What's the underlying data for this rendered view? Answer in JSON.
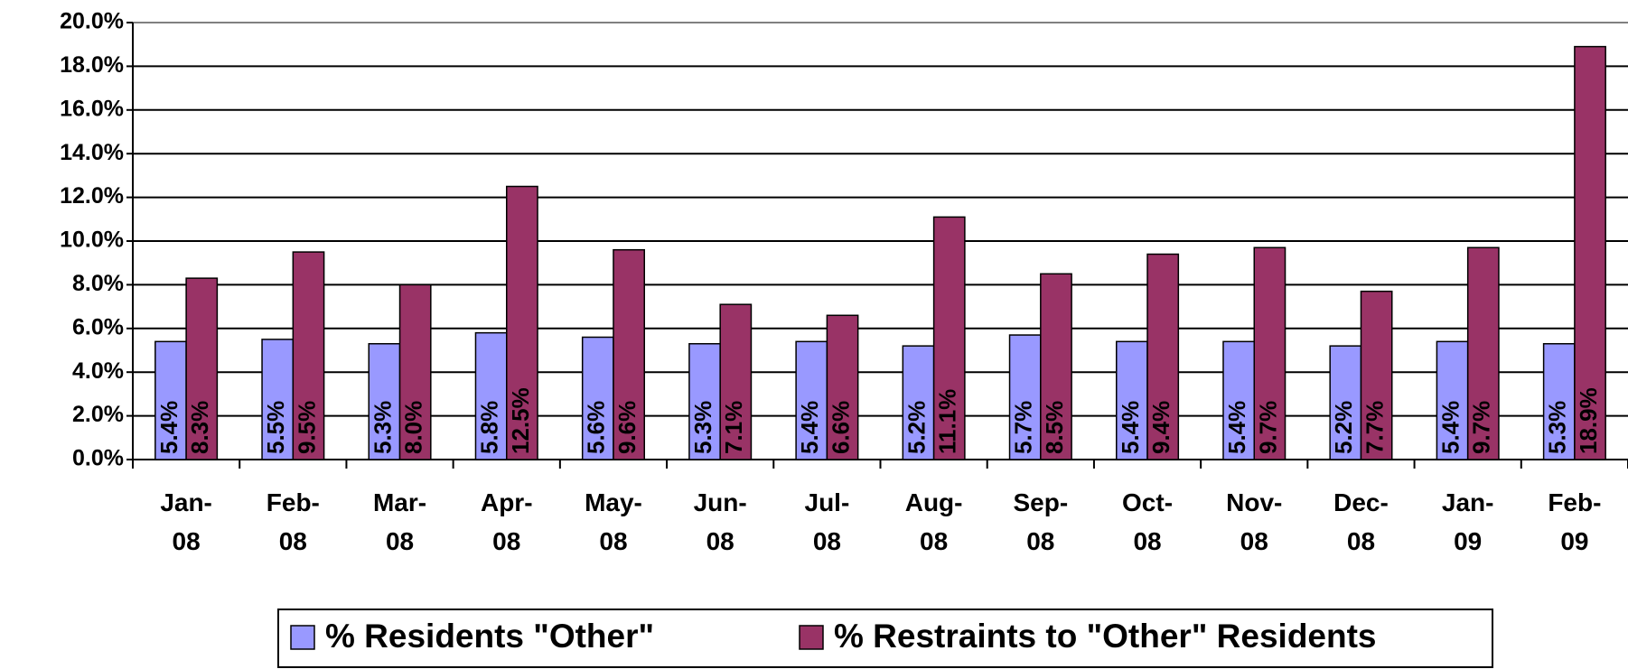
{
  "chart_data": {
    "type": "bar",
    "categories": [
      "Jan-08",
      "Feb-08",
      "Mar-08",
      "Apr-08",
      "May-08",
      "Jun-08",
      "Jul-08",
      "Aug-08",
      "Sep-08",
      "Oct-08",
      "Nov-08",
      "Dec-08",
      "Jan-09",
      "Feb-09"
    ],
    "series": [
      {
        "name": "% Residents \"Other\"",
        "color": "#9999ff",
        "values": [
          5.4,
          5.5,
          5.3,
          5.8,
          5.6,
          5.3,
          5.4,
          5.2,
          5.7,
          5.4,
          5.4,
          5.2,
          5.4,
          5.3
        ],
        "value_labels": [
          "5.4%",
          "5.5%",
          "5.3%",
          "5.8%",
          "5.6%",
          "5.3%",
          "5.4%",
          "5.2%",
          "5.7%",
          "5.4%",
          "5.4%",
          "5.2%",
          "5.4%",
          "5.3%"
        ]
      },
      {
        "name": "% Restraints to \"Other\" Residents",
        "color": "#993366",
        "values": [
          8.3,
          9.5,
          8.0,
          12.5,
          9.6,
          7.1,
          6.6,
          11.1,
          8.5,
          9.4,
          9.7,
          7.7,
          9.7,
          18.9
        ],
        "value_labels": [
          "8.3%",
          "9.5%",
          "8.0%",
          "12.5%",
          "9.6%",
          "7.1%",
          "6.6%",
          "11.1%",
          "8.5%",
          "9.4%",
          "9.7%",
          "7.7%",
          "9.7%",
          "18.9%"
        ]
      }
    ],
    "ylim": [
      0,
      20
    ],
    "yticks": [
      {
        "value": 0,
        "label": "0.0%"
      },
      {
        "value": 2,
        "label": "2.0%"
      },
      {
        "value": 4,
        "label": "4.0%"
      },
      {
        "value": 6,
        "label": "6.0%"
      },
      {
        "value": 8,
        "label": "8.0%"
      },
      {
        "value": 10,
        "label": "10.0%"
      },
      {
        "value": 12,
        "label": "12.0%"
      },
      {
        "value": 14,
        "label": "14.0%"
      },
      {
        "value": 16,
        "label": "16.0%"
      },
      {
        "value": 18,
        "label": "18.0%"
      },
      {
        "value": 20,
        "label": "20.0%"
      }
    ],
    "grid": true,
    "legend": "bottom"
  }
}
